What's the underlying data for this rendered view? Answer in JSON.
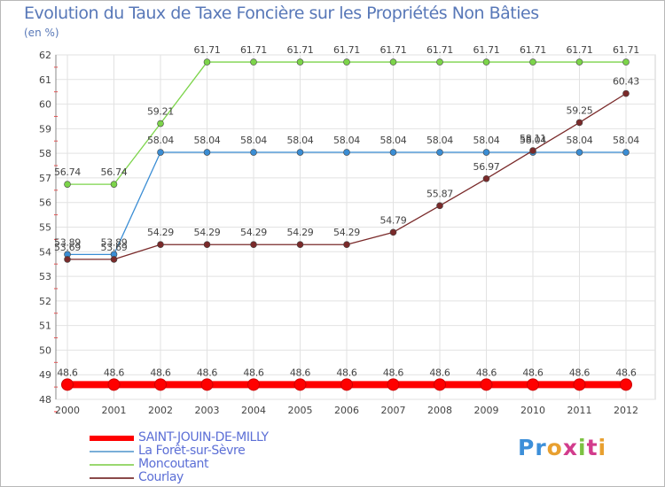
{
  "chart_data": {
    "type": "line",
    "title": "Evolution du Taux de Taxe Foncière sur les Propriétés Non Bâties",
    "ylabel": "(en %)",
    "xlabel": "",
    "categories": [
      "2000",
      "2001",
      "2002",
      "2003",
      "2004",
      "2005",
      "2006",
      "2007",
      "2008",
      "2009",
      "2010",
      "2011",
      "2012"
    ],
    "ylim": [
      48,
      62
    ],
    "yticks": [
      48,
      49,
      50,
      51,
      52,
      53,
      54,
      55,
      56,
      57,
      58,
      59,
      60,
      61,
      62
    ],
    "grid": true,
    "legend_position": "bottom-left",
    "series": [
      {
        "name": "SAINT-JOUIN-DE-MILLY",
        "color": "#ff0000",
        "emphasis": true,
        "values": [
          48.6,
          48.6,
          48.6,
          48.6,
          48.6,
          48.6,
          48.6,
          48.6,
          48.6,
          48.6,
          48.6,
          48.6,
          48.6
        ],
        "labels": [
          "48.6",
          "48.6",
          "48.6",
          "48.6",
          "48.6",
          "48.6",
          "48.6",
          "48.6",
          "48.6",
          "48.6",
          "48.6",
          "48.6",
          "48.6"
        ]
      },
      {
        "name": "La Forêt-sur-Sèvre",
        "color": "#3a8dd4",
        "emphasis": false,
        "values": [
          53.89,
          53.89,
          58.04,
          58.04,
          58.04,
          58.04,
          58.04,
          58.04,
          58.04,
          58.04,
          58.04,
          58.04,
          58.04
        ],
        "labels": [
          "53.89",
          "53.89",
          "58.04",
          "58.04",
          "58.04",
          "58.04",
          "58.04",
          "58.04",
          "58.04",
          "58.04",
          "58.04",
          "58.04",
          "58.04"
        ]
      },
      {
        "name": "Moncoutant",
        "color": "#7cd44a",
        "emphasis": false,
        "values": [
          56.74,
          56.74,
          59.21,
          61.71,
          61.71,
          61.71,
          61.71,
          61.71,
          61.71,
          61.71,
          61.71,
          61.71,
          61.71
        ],
        "labels": [
          "56.74",
          "56.74",
          "59.21",
          "61.71",
          "61.71",
          "61.71",
          "61.71",
          "61.71",
          "61.71",
          "61.71",
          "61.71",
          "61.71",
          "61.71"
        ]
      },
      {
        "name": "Courlay",
        "color": "#7a2a2a",
        "emphasis": false,
        "values": [
          53.69,
          53.69,
          54.29,
          54.29,
          54.29,
          54.29,
          54.29,
          54.79,
          55.87,
          56.97,
          58.11,
          59.25,
          60.43
        ],
        "labels": [
          "53.69",
          "53.69",
          "54.29",
          "54.29",
          "54.29",
          "54.29",
          "54.29",
          "54.79",
          "55.87",
          "56.97",
          "58.11",
          "59.25",
          "60.43"
        ]
      }
    ]
  },
  "legend": {
    "items": [
      {
        "label": "SAINT-JOUIN-DE-MILLY"
      },
      {
        "label": "La Forêt-sur-Sèvre"
      },
      {
        "label": "Moncoutant"
      },
      {
        "label": "Courlay"
      }
    ]
  },
  "logo": {
    "text": "Proxiti"
  }
}
